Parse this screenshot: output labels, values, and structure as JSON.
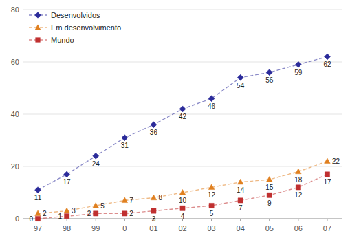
{
  "chart_data": {
    "type": "line",
    "categories": [
      "97",
      "98",
      "99",
      "0",
      "01",
      "02",
      "03",
      "04",
      "05",
      "06",
      "07"
    ],
    "series": [
      {
        "name": "Desenvolvidos",
        "color": "#2b2b9a",
        "marker": "diamond",
        "line_style": "dashed",
        "values": [
          11,
          17,
          24,
          31,
          36,
          42,
          46,
          54,
          56,
          59,
          62
        ]
      },
      {
        "name": "Em desenvolvimento",
        "color": "#e08020",
        "marker": "triangle",
        "line_style": "dashed",
        "values": [
          2,
          3,
          5,
          7,
          8,
          10,
          12,
          14,
          15,
          18,
          22
        ]
      },
      {
        "name": "Mundo",
        "color": "#c03030",
        "marker": "square",
        "line_style": "dashed",
        "values": [
          0,
          1,
          2,
          2,
          3,
          4,
          5,
          7,
          9,
          12,
          17
        ]
      }
    ],
    "ylim": [
      0,
      80
    ],
    "yticks": [
      0,
      20,
      40,
      60,
      80
    ],
    "grid": true,
    "legend": "upper left",
    "data_labels": true
  }
}
